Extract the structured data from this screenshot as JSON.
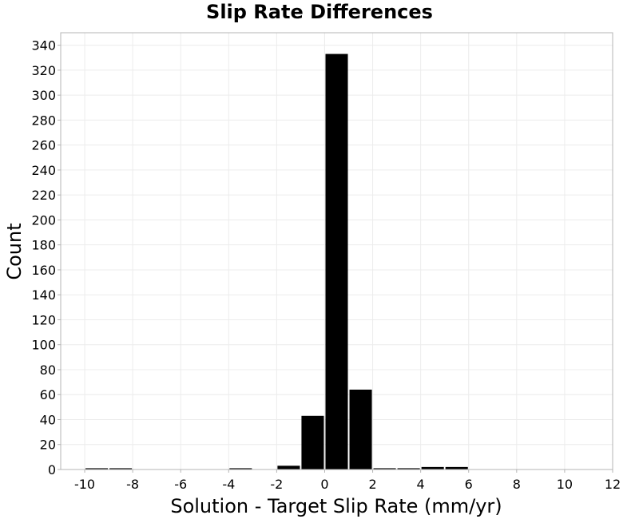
{
  "chart_data": {
    "type": "bar",
    "title": "Slip Rate Differences",
    "xlabel": "Solution - Target Slip Rate (mm/yr)",
    "ylabel": "Count",
    "xlim": [
      -11,
      12
    ],
    "ylim": [
      0,
      350
    ],
    "xticks": [
      -10,
      -8,
      -6,
      -4,
      -2,
      0,
      2,
      4,
      6,
      8,
      10,
      12
    ],
    "yticks": [
      0,
      20,
      40,
      60,
      80,
      100,
      120,
      140,
      160,
      180,
      200,
      220,
      240,
      260,
      280,
      300,
      320,
      340
    ],
    "grid": true,
    "bin_width": 1,
    "bins": [
      {
        "x": -10,
        "value": 1
      },
      {
        "x": -9,
        "value": 1
      },
      {
        "x": -4,
        "value": 1
      },
      {
        "x": -2,
        "value": 3
      },
      {
        "x": -1,
        "value": 43
      },
      {
        "x": 0,
        "value": 333
      },
      {
        "x": 1,
        "value": 64
      },
      {
        "x": 2,
        "value": 1
      },
      {
        "x": 3,
        "value": 1
      },
      {
        "x": 4,
        "value": 2
      },
      {
        "x": 5,
        "value": 2
      }
    ],
    "bar_color": "#000000"
  }
}
